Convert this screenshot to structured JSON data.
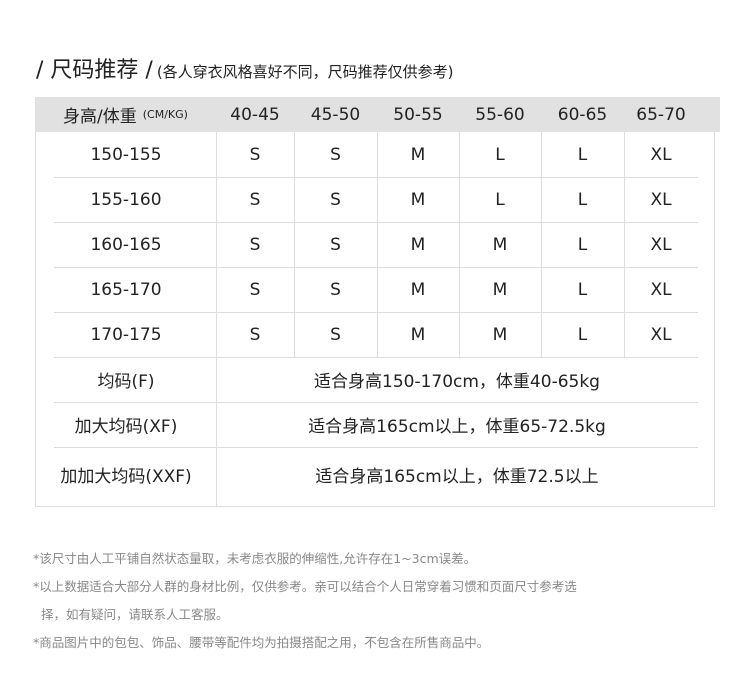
{
  "title": {
    "main": "/ 尺码推荐 /",
    "sub": "(各人穿衣风格喜好不同，尺码推荐仅供参考)"
  },
  "table": {
    "header_label": "身高/体重",
    "header_unit": "(CM/KG)",
    "weights": [
      "40-45",
      "45-50",
      "50-55",
      "55-60",
      "60-65",
      "65-70"
    ],
    "rows": [
      {
        "height": "150-155",
        "sizes": [
          "S",
          "S",
          "M",
          "L",
          "L",
          "XL"
        ]
      },
      {
        "height": "155-160",
        "sizes": [
          "S",
          "S",
          "M",
          "L",
          "L",
          "XL"
        ]
      },
      {
        "height": "160-165",
        "sizes": [
          "S",
          "S",
          "M",
          "M",
          "L",
          "XL"
        ]
      },
      {
        "height": "165-170",
        "sizes": [
          "S",
          "S",
          "M",
          "M",
          "L",
          "XL"
        ]
      },
      {
        "height": "170-175",
        "sizes": [
          "S",
          "S",
          "M",
          "M",
          "L",
          "XL"
        ]
      }
    ],
    "free_sizes": [
      {
        "name": "均码(F)",
        "desc": "适合身高150-170cm，体重40-65kg"
      },
      {
        "name": "加大均码(XF)",
        "desc": "适合身高165cm以上，体重65-72.5kg"
      },
      {
        "name": "加加大均码(XXF)",
        "desc": "适合身高165cm以上，体重72.5以上"
      }
    ]
  },
  "notes": [
    "*该尺寸由人工平铺自然状态量取，未考虑衣服的伸缩性,允许存在1~3cm误差。",
    "*以上数据适合大部分人群的身材比例，仅供参考。亲可以结合个人日常穿着习惯和页面尺寸参考选",
    "择，如有疑问，请联系人工客服。",
    "*商品图片中的包包、饰品、腰带等配件均为拍摄搭配之用，不包含在所售商品中。"
  ]
}
